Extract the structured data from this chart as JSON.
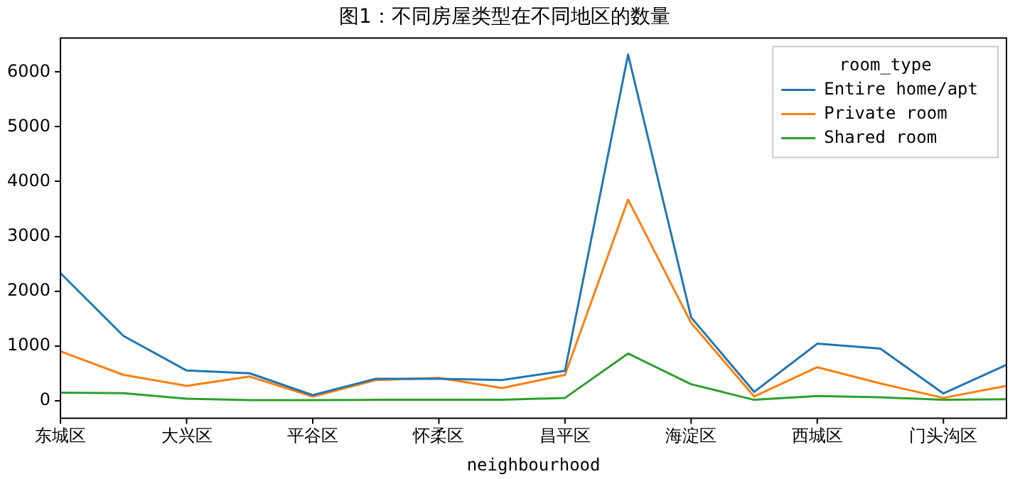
{
  "chart_data": {
    "type": "line",
    "title": "图1：不同房屋类型在不同地区的数量",
    "xlabel": "neighbourhood",
    "legend_title": "room_type",
    "legend": "top right",
    "grid": false,
    "categories": [
      "东城区",
      null,
      "大兴区",
      null,
      "平谷区",
      null,
      "怀柔区",
      null,
      "昌平区",
      null,
      "海淀区",
      null,
      "西城区",
      null,
      "门头沟区",
      null
    ],
    "ylim": [
      -320,
      6620
    ],
    "yticks": [
      0,
      1000,
      2000,
      3000,
      4000,
      5000,
      6000
    ],
    "series": [
      {
        "name": "Entire home/apt",
        "color": "#1f77b4",
        "values": [
          2330,
          1180,
          550,
          500,
          100,
          400,
          400,
          375,
          545,
          6320,
          1520,
          160,
          1040,
          950,
          130,
          655
        ]
      },
      {
        "name": "Private room",
        "color": "#ff7f0e",
        "values": [
          900,
          470,
          270,
          440,
          75,
          375,
          415,
          230,
          470,
          3670,
          1420,
          75,
          610,
          315,
          50,
          270
        ]
      },
      {
        "name": "Shared room",
        "color": "#2ca02c",
        "values": [
          145,
          135,
          35,
          10,
          10,
          15,
          15,
          15,
          50,
          860,
          300,
          15,
          85,
          60,
          15,
          25
        ]
      }
    ]
  }
}
